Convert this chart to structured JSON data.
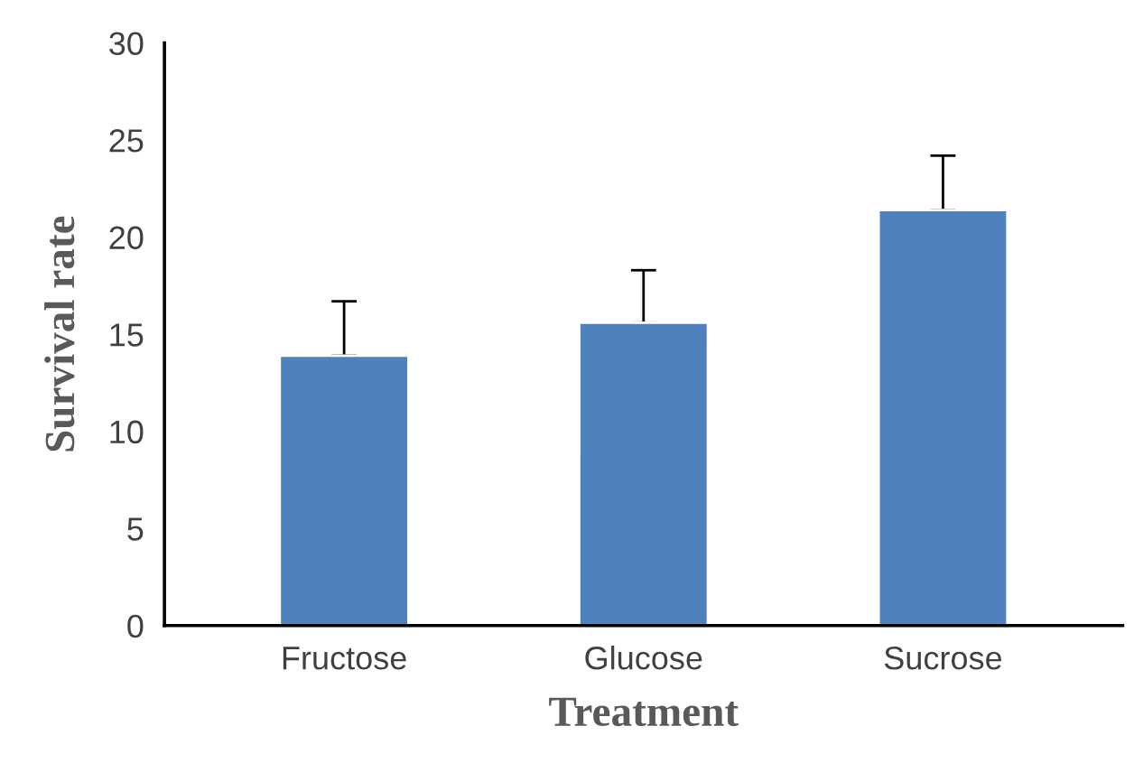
{
  "chart_data": {
    "type": "bar",
    "xlabel": "Treatment",
    "ylabel": "Survival rate",
    "categories": [
      "Fructose",
      "Glucose",
      "Sucrose"
    ],
    "values": [
      13.9,
      15.6,
      21.4
    ],
    "errors": [
      [
        13.9,
        16.7
      ],
      [
        15.6,
        18.3
      ],
      [
        21.4,
        24.2
      ]
    ],
    "color": "#4f81bd",
    "ylim": [
      0,
      30
    ],
    "yticks": [
      0,
      5,
      10,
      15,
      20,
      25,
      30
    ],
    "grid": false,
    "legend": false
  }
}
